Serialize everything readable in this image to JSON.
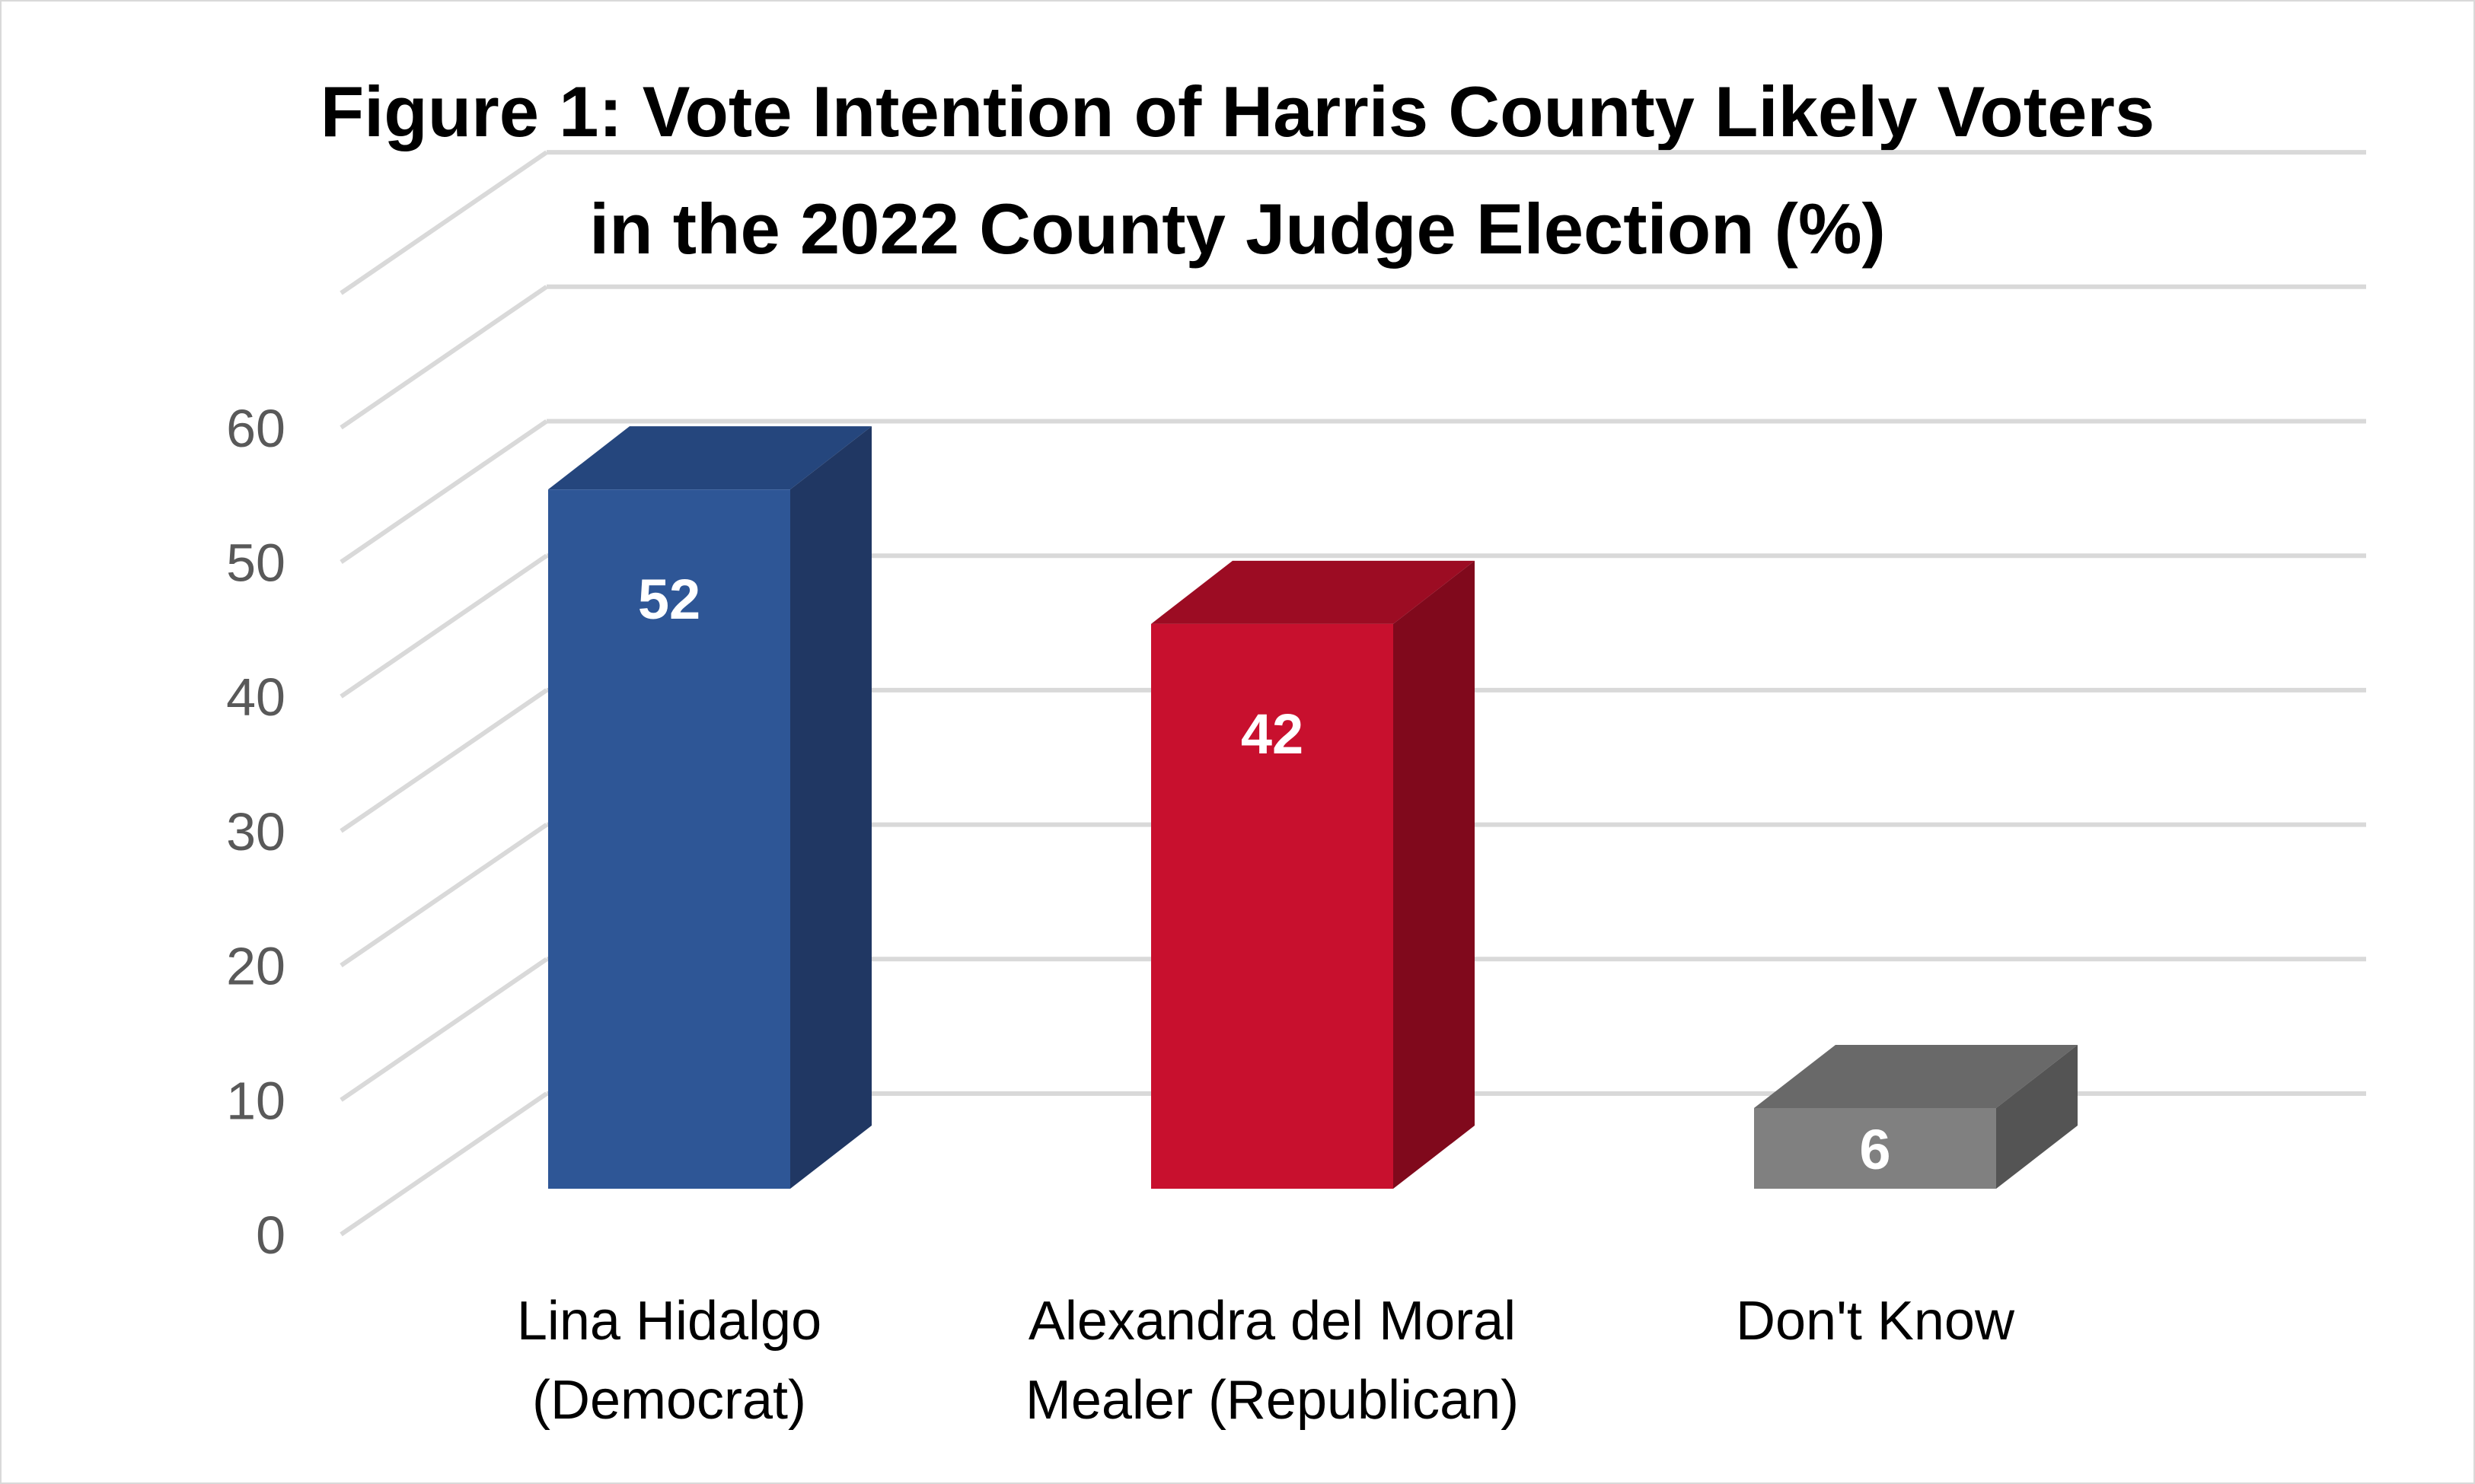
{
  "chart_data": {
    "type": "bar",
    "title_lines": [
      "Figure 1: Vote Intention of Harris County Likely Voters",
      "in the 2022 County Judge Election (%)"
    ],
    "categories": [
      [
        "Lina Hidalgo",
        "(Democrat)"
      ],
      [
        "Alexandra del Moral",
        "Mealer (Republican)"
      ],
      [
        "Don't Know"
      ]
    ],
    "values": [
      52,
      42,
      6
    ],
    "data_labels": [
      "52",
      "42",
      "6"
    ],
    "colors": [
      {
        "front": "#2E5696",
        "side": "#203763",
        "top": "#25467D"
      },
      {
        "front": "#C8102E",
        "side": "#80091C",
        "top": "#9C0C23"
      },
      {
        "front": "#808080",
        "side": "#545454",
        "top": "#696969"
      }
    ],
    "ylim": [
      0,
      70
    ],
    "yticks": [
      0,
      10,
      20,
      30,
      40,
      50,
      60
    ],
    "grid": true,
    "style": "3d-clustered-column",
    "legend": "none"
  }
}
